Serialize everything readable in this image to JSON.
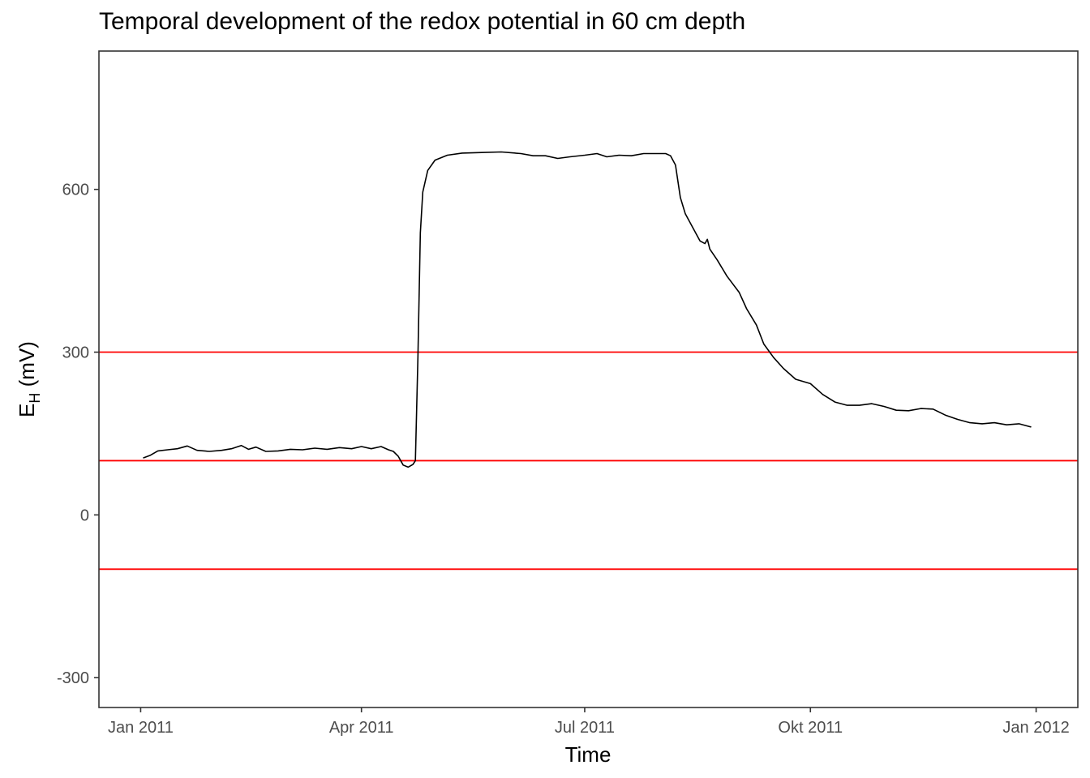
{
  "chart_data": {
    "type": "line",
    "title": "Temporal development of the redox potential in 60 cm depth",
    "xlabel": "Time",
    "ylabel": {
      "main": "E",
      "subscript": "H",
      "unit": " (mV)"
    },
    "x_ticks": [
      {
        "label": "Jan 2011",
        "date": "2011-01-01"
      },
      {
        "label": "Apr 2011",
        "date": "2011-04-01"
      },
      {
        "label": "Jul 2011",
        "date": "2011-07-01"
      },
      {
        "label": "Okt 2011",
        "date": "2011-10-01"
      },
      {
        "label": "Jan 2012",
        "date": "2012-01-01"
      }
    ],
    "y_ticks": [
      -300,
      0,
      300,
      600
    ],
    "xlim": [
      "2010-12-15",
      "2012-01-18"
    ],
    "ylim": [
      -355,
      855
    ],
    "grid": false,
    "reference_lines": {
      "orientation": "horizontal",
      "color": "#ff0000",
      "y": [
        300,
        100,
        -100
      ]
    },
    "series": [
      {
        "color": "#000000",
        "points": [
          [
            "2011-01-02",
            105
          ],
          [
            "2011-01-05",
            110
          ],
          [
            "2011-01-08",
            118
          ],
          [
            "2011-01-12",
            120
          ],
          [
            "2011-01-16",
            122
          ],
          [
            "2011-01-20",
            127
          ],
          [
            "2011-01-24",
            119
          ],
          [
            "2011-01-29",
            117
          ],
          [
            "2011-02-03",
            119
          ],
          [
            "2011-02-07",
            122
          ],
          [
            "2011-02-11",
            128
          ],
          [
            "2011-02-14",
            121
          ],
          [
            "2011-02-17",
            125
          ],
          [
            "2011-02-21",
            117
          ],
          [
            "2011-02-26",
            118
          ],
          [
            "2011-03-03",
            121
          ],
          [
            "2011-03-08",
            120
          ],
          [
            "2011-03-13",
            123
          ],
          [
            "2011-03-18",
            121
          ],
          [
            "2011-03-23",
            124
          ],
          [
            "2011-03-28",
            122
          ],
          [
            "2011-04-01",
            126
          ],
          [
            "2011-04-05",
            122
          ],
          [
            "2011-04-09",
            126
          ],
          [
            "2011-04-12",
            120
          ],
          [
            "2011-04-14",
            117
          ],
          [
            "2011-04-16",
            108
          ],
          [
            "2011-04-18",
            92
          ],
          [
            "2011-04-20",
            88
          ],
          [
            "2011-04-22",
            93
          ],
          [
            "2011-04-23",
            100
          ],
          [
            "2011-04-24",
            290
          ],
          [
            "2011-04-25",
            520
          ],
          [
            "2011-04-26",
            595
          ],
          [
            "2011-04-28",
            635
          ],
          [
            "2011-05-01",
            654
          ],
          [
            "2011-05-06",
            663
          ],
          [
            "2011-05-12",
            667
          ],
          [
            "2011-05-20",
            668
          ],
          [
            "2011-05-28",
            669
          ],
          [
            "2011-06-05",
            666
          ],
          [
            "2011-06-10",
            662
          ],
          [
            "2011-06-15",
            662
          ],
          [
            "2011-06-20",
            657
          ],
          [
            "2011-06-25",
            660
          ],
          [
            "2011-07-01",
            663
          ],
          [
            "2011-07-06",
            666
          ],
          [
            "2011-07-10",
            660
          ],
          [
            "2011-07-15",
            663
          ],
          [
            "2011-07-20",
            662
          ],
          [
            "2011-07-25",
            666
          ],
          [
            "2011-07-30",
            666
          ],
          [
            "2011-08-03",
            666
          ],
          [
            "2011-08-05",
            662
          ],
          [
            "2011-08-07",
            645
          ],
          [
            "2011-08-08",
            615
          ],
          [
            "2011-08-09",
            585
          ],
          [
            "2011-08-11",
            555
          ],
          [
            "2011-08-14",
            530
          ],
          [
            "2011-08-17",
            505
          ],
          [
            "2011-08-19",
            500
          ],
          [
            "2011-08-20",
            508
          ],
          [
            "2011-08-21",
            490
          ],
          [
            "2011-08-24",
            470
          ],
          [
            "2011-08-28",
            440
          ],
          [
            "2011-09-02",
            410
          ],
          [
            "2011-09-05",
            380
          ],
          [
            "2011-09-09",
            350
          ],
          [
            "2011-09-12",
            315
          ],
          [
            "2011-09-16",
            290
          ],
          [
            "2011-09-20",
            270
          ],
          [
            "2011-09-25",
            250
          ],
          [
            "2011-10-01",
            242
          ],
          [
            "2011-10-06",
            222
          ],
          [
            "2011-10-11",
            208
          ],
          [
            "2011-10-16",
            202
          ],
          [
            "2011-10-21",
            202
          ],
          [
            "2011-10-26",
            205
          ],
          [
            "2011-10-31",
            200
          ],
          [
            "2011-11-05",
            193
          ],
          [
            "2011-11-10",
            192
          ],
          [
            "2011-11-15",
            196
          ],
          [
            "2011-11-20",
            195
          ],
          [
            "2011-11-25",
            184
          ],
          [
            "2011-11-30",
            176
          ],
          [
            "2011-12-05",
            170
          ],
          [
            "2011-12-10",
            168
          ],
          [
            "2011-12-15",
            170
          ],
          [
            "2011-12-20",
            166
          ],
          [
            "2011-12-25",
            168
          ],
          [
            "2011-12-30",
            162
          ]
        ]
      }
    ]
  }
}
